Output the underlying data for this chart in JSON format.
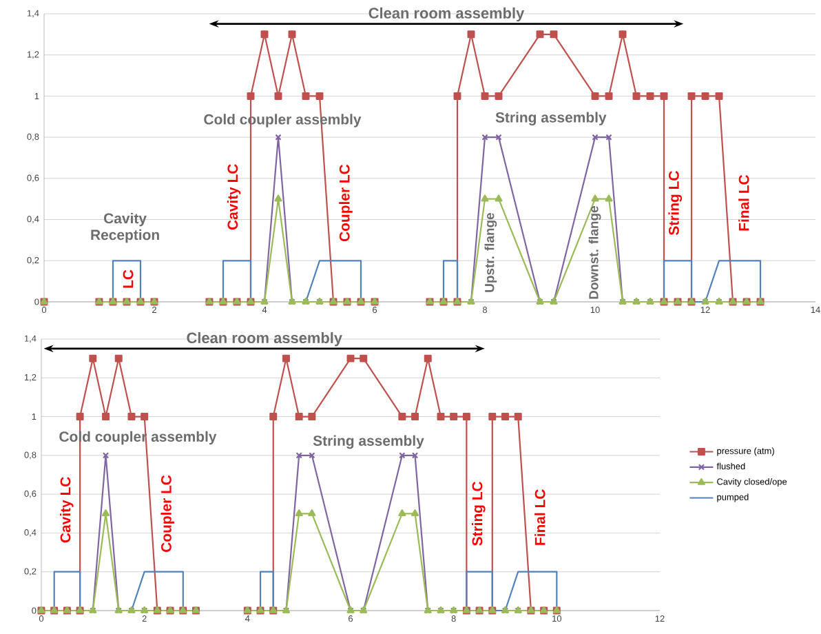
{
  "chart_data": [
    {
      "type": "line",
      "xlim": [
        0,
        14
      ],
      "ylim": [
        0,
        1.4
      ],
      "xticks": [
        0,
        2,
        4,
        6,
        8,
        10,
        12,
        14
      ],
      "yticks": [
        0,
        {
          "value": 0.2,
          "label": "0,2"
        },
        {
          "value": 0.4,
          "label": "0,4"
        },
        {
          "value": 0.6,
          "label": "0,6"
        },
        {
          "value": 0.8,
          "label": "0,8"
        },
        1,
        {
          "value": 1.2,
          "label": "1,2"
        },
        {
          "value": 1.4,
          "label": "1,4"
        }
      ],
      "grid": "y",
      "legend": false,
      "series": [
        {
          "color": "#c0504d",
          "marker": "square",
          "x": [
            0,
            null,
            1,
            1.25,
            1.5,
            1.75,
            2,
            null,
            3,
            3.25,
            3.5,
            3.75,
            3.75,
            4,
            4.25,
            4.5,
            4.75,
            5,
            5.25,
            5.5,
            5.75,
            6,
            null,
            7,
            7.25,
            7.5,
            7.5,
            7.75,
            8,
            8.25,
            9,
            9.25,
            10,
            10.25,
            10.5,
            10.75,
            11,
            11.25,
            11.25,
            11.5,
            11.75,
            11.75,
            12,
            12.25,
            12.5,
            12.75,
            13
          ],
          "values": [
            0,
            null,
            0,
            0,
            0,
            0,
            0,
            null,
            0,
            0,
            0,
            0,
            1,
            1.3,
            1,
            1.3,
            1,
            1,
            0,
            0,
            0,
            0,
            null,
            0,
            0,
            0,
            1,
            1.3,
            1,
            1,
            1.3,
            1.3,
            1,
            1,
            1.3,
            1,
            1,
            1,
            0,
            0,
            0,
            1,
            1,
            1,
            0,
            0,
            0
          ]
        },
        {
          "color": "#8064a2",
          "marker": "cross",
          "x": [
            0,
            null,
            1,
            1.25,
            1.5,
            1.75,
            2,
            null,
            3,
            3.25,
            3.5,
            3.75,
            4,
            4.25,
            4.5,
            4.75,
            5,
            5.25,
            5.5,
            5.75,
            6,
            null,
            7,
            7.25,
            7.5,
            7.75,
            8,
            8.25,
            9,
            9.25,
            10,
            10.25,
            10.5,
            10.75,
            11,
            11.25,
            11.5,
            11.75,
            12,
            12.25,
            12.5,
            12.75,
            13
          ],
          "values": [
            0,
            null,
            0,
            0,
            0,
            0,
            0,
            null,
            0,
            0,
            0,
            0,
            0,
            0.8,
            0,
            0,
            0,
            0,
            0,
            0,
            0,
            null,
            0,
            0,
            0,
            0,
            0.8,
            0.8,
            0,
            0,
            0.8,
            0.8,
            0,
            0,
            0,
            0,
            0,
            0,
            0,
            0,
            0,
            0,
            0
          ]
        },
        {
          "color": "#9bbb59",
          "marker": "triangle",
          "x": [
            0,
            null,
            1,
            1.25,
            1.5,
            1.75,
            2,
            null,
            3,
            3.25,
            3.5,
            3.75,
            4,
            4.25,
            4.5,
            4.75,
            5,
            5.25,
            5.5,
            5.75,
            6,
            null,
            7,
            7.25,
            7.5,
            7.75,
            8,
            8.25,
            9,
            9.25,
            10,
            10.25,
            10.5,
            10.75,
            11,
            11.25,
            11.5,
            11.75,
            12,
            12.25,
            12.5,
            12.75,
            13
          ],
          "values": [
            0,
            null,
            0,
            0,
            0,
            0,
            0,
            null,
            0,
            0,
            0,
            0,
            0,
            0.5,
            0,
            0,
            0,
            0,
            0,
            0,
            0,
            null,
            0,
            0,
            0,
            0,
            0.5,
            0.5,
            0,
            0,
            0.5,
            0.5,
            0,
            0,
            0,
            0,
            0,
            0,
            0,
            0,
            0,
            0,
            0
          ]
        },
        {
          "color": "#4f81bd",
          "marker": "none",
          "x": [
            1.25,
            1.25,
            1.75,
            1.75,
            null,
            3.25,
            3.25,
            3.75,
            3.75,
            null,
            4.75,
            5,
            5.75,
            5.75,
            null,
            7.25,
            7.25,
            7.5,
            7.5,
            null,
            11.25,
            11.25,
            11.75,
            11.75,
            12,
            12.25,
            13,
            13
          ],
          "values": [
            0,
            0.2,
            0.2,
            0,
            null,
            0,
            0.2,
            0.2,
            0,
            null,
            0,
            0.2,
            0.2,
            0,
            null,
            0,
            0.2,
            0.2,
            0,
            null,
            0,
            0.2,
            0.2,
            0,
            0,
            0.2,
            0.2,
            0
          ]
        }
      ],
      "annotations": [
        "Clean room assembly",
        "Cavity Reception",
        "LC",
        "Cavity LC",
        "Cold coupler assembly",
        "Coupler LC",
        "Upstr. flange",
        "String assembly",
        "Downst. flange",
        "String LC",
        "Final LC"
      ]
    },
    {
      "type": "line",
      "xlim": [
        0,
        12
      ],
      "ylim": [
        0,
        1.4
      ],
      "xticks": [
        0,
        2,
        4,
        6,
        8,
        10,
        12
      ],
      "yticks": [
        0,
        {
          "value": 0.2,
          "label": "0,2"
        },
        {
          "value": 0.4,
          "label": "0,4"
        },
        {
          "value": 0.6,
          "label": "0,6"
        },
        {
          "value": 0.8,
          "label": "0,8"
        },
        1,
        {
          "value": 1.2,
          "label": "1,2"
        },
        {
          "value": 1.4,
          "label": "1,4"
        }
      ],
      "grid": "y",
      "legend": "right",
      "series": [
        {
          "name": "pressure (atm)",
          "color": "#c0504d",
          "marker": "square",
          "x": [
            0,
            0.25,
            0.5,
            0.75,
            0.75,
            1,
            1.25,
            1.5,
            1.75,
            2,
            2.25,
            2.5,
            2.75,
            3,
            null,
            4,
            4.25,
            4.5,
            4.5,
            4.75,
            5,
            5.25,
            6,
            6.25,
            7,
            7.25,
            7.5,
            7.75,
            8,
            8.25,
            8.25,
            8.5,
            8.75,
            8.75,
            9,
            9.25,
            9.5,
            9.75,
            10
          ],
          "values": [
            0,
            0,
            0,
            0,
            1,
            1.3,
            1,
            1.3,
            1,
            1,
            0,
            0,
            0,
            0,
            null,
            0,
            0,
            0,
            1,
            1.3,
            1,
            1,
            1.3,
            1.3,
            1,
            1,
            1.3,
            1,
            1,
            1,
            0,
            0,
            0,
            1,
            1,
            1,
            0,
            0,
            0
          ]
        },
        {
          "name": "flushed",
          "color": "#8064a2",
          "marker": "cross",
          "x": [
            0,
            0.25,
            0.5,
            0.75,
            1,
            1.25,
            1.5,
            1.75,
            2,
            2.25,
            2.5,
            2.75,
            3,
            null,
            4,
            4.25,
            4.5,
            4.75,
            5,
            5.25,
            6,
            6.25,
            7,
            7.25,
            7.5,
            7.75,
            8,
            8.25,
            8.5,
            8.75,
            9,
            9.25,
            9.5,
            9.75,
            10
          ],
          "values": [
            0,
            0,
            0,
            0,
            0,
            0.8,
            0,
            0,
            0,
            0,
            0,
            0,
            0,
            null,
            0,
            0,
            0,
            0,
            0.8,
            0.8,
            0,
            0,
            0.8,
            0.8,
            0,
            0,
            0,
            0,
            0,
            0,
            0,
            0,
            0,
            0,
            0
          ]
        },
        {
          "name": "Cavity closed/ope",
          "color": "#9bbb59",
          "marker": "triangle",
          "x": [
            0,
            0.25,
            0.5,
            0.75,
            1,
            1.25,
            1.5,
            1.75,
            2,
            2.25,
            2.5,
            2.75,
            3,
            null,
            4,
            4.25,
            4.5,
            4.75,
            5,
            5.25,
            6,
            6.25,
            7,
            7.25,
            7.5,
            7.75,
            8,
            8.25,
            8.5,
            8.75,
            9,
            9.25,
            9.5,
            9.75,
            10
          ],
          "values": [
            0,
            0,
            0,
            0,
            0,
            0.5,
            0,
            0,
            0,
            0,
            0,
            0,
            0,
            null,
            0,
            0,
            0,
            0,
            0.5,
            0.5,
            0,
            0,
            0.5,
            0.5,
            0,
            0,
            0,
            0,
            0,
            0,
            0,
            0,
            0,
            0,
            0
          ]
        },
        {
          "name": "pumped",
          "color": "#4f81bd",
          "marker": "none",
          "x": [
            0.25,
            0.25,
            0.75,
            0.75,
            null,
            1.75,
            2,
            2.75,
            2.75,
            null,
            4.25,
            4.25,
            4.5,
            4.5,
            null,
            8.25,
            8.25,
            8.75,
            8.75,
            9,
            9.25,
            10,
            10
          ],
          "values": [
            0,
            0.2,
            0.2,
            0,
            null,
            0,
            0.2,
            0.2,
            0,
            null,
            0,
            0.2,
            0.2,
            0,
            null,
            0,
            0.2,
            0.2,
            0,
            0,
            0.2,
            0.2,
            0
          ]
        }
      ],
      "annotations": [
        "Clean room assembly",
        "Cavity LC",
        "Cold coupler assembly",
        "Coupler LC",
        "String assembly",
        "String LC",
        "Final LC"
      ]
    }
  ]
}
